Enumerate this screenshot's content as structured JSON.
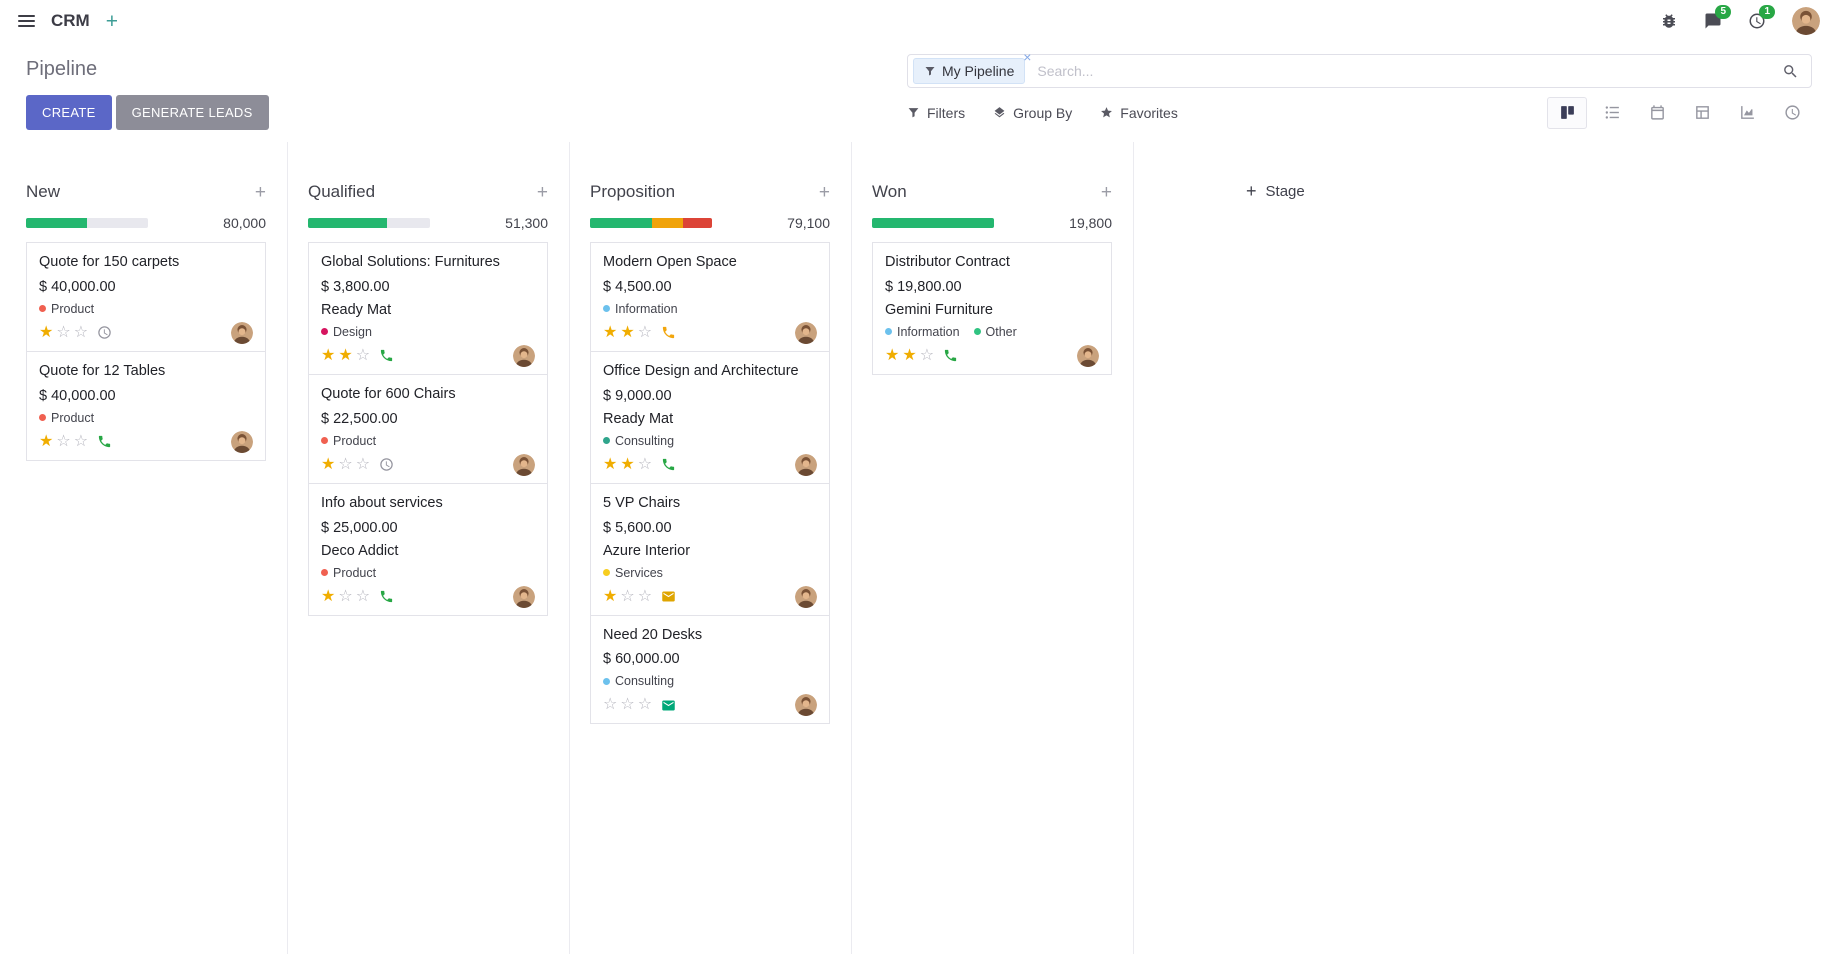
{
  "navbar": {
    "app_name": "CRM",
    "messages_badge": "5",
    "activities_badge": "1"
  },
  "control": {
    "title": "Pipeline",
    "create": "CREATE",
    "generate_leads": "GENERATE LEADS",
    "search_facet": "My Pipeline",
    "search_placeholder": "Search...",
    "add_stage": "Stage",
    "search_tools": [
      {
        "label": "Filters",
        "icon": "funnel"
      },
      {
        "label": "Group By",
        "icon": "layers"
      },
      {
        "label": "Favorites",
        "icon": "star"
      }
    ],
    "view_switcher": [
      {
        "name": "kanban",
        "active": true
      },
      {
        "name": "list",
        "active": false
      },
      {
        "name": "calendar",
        "active": false
      },
      {
        "name": "pivot",
        "active": false
      },
      {
        "name": "graph",
        "active": false
      },
      {
        "name": "activity",
        "active": false
      }
    ]
  },
  "colors": {
    "green": "#24b76f",
    "yellow": "#f0a30a",
    "red": "#dc4437",
    "bar_bg": "#e8e8ee"
  },
  "board": {
    "columns": [
      {
        "name": "New",
        "total": "80,000",
        "bar": [
          {
            "color": "green",
            "pct": 50
          }
        ],
        "cards": [
          {
            "title": "Quote for 150 carpets",
            "amount": "$ 40,000.00",
            "tags": [
              {
                "label": "Product",
                "color": "#f06050"
              }
            ],
            "stars": 1,
            "activity": {
              "icon": "clock",
              "color": "#95959f"
            }
          },
          {
            "title": "Quote for 12 Tables",
            "amount": "$ 40,000.00",
            "tags": [
              {
                "label": "Product",
                "color": "#f06050"
              }
            ],
            "stars": 1,
            "activity": {
              "icon": "phone",
              "color": "#28a745"
            }
          }
        ]
      },
      {
        "name": "Qualified",
        "total": "51,300",
        "bar": [
          {
            "color": "green",
            "pct": 65
          }
        ],
        "cards": [
          {
            "title": "Global Solutions: Furnitures",
            "amount": "$ 3,800.00",
            "partner": "Ready Mat",
            "tags": [
              {
                "label": "Design",
                "color": "#d6145f"
              }
            ],
            "stars": 2,
            "activity": {
              "icon": "phone",
              "color": "#28a745"
            }
          },
          {
            "title": "Quote for 600 Chairs",
            "amount": "$ 22,500.00",
            "tags": [
              {
                "label": "Product",
                "color": "#f06050"
              }
            ],
            "stars": 1,
            "activity": {
              "icon": "clock",
              "color": "#95959f"
            }
          },
          {
            "title": "Info about services",
            "amount": "$ 25,000.00",
            "partner": "Deco Addict",
            "tags": [
              {
                "label": "Product",
                "color": "#f06050"
              }
            ],
            "stars": 1,
            "activity": {
              "icon": "phone",
              "color": "#28a745"
            }
          }
        ]
      },
      {
        "name": "Proposition",
        "total": "79,100",
        "bar": [
          {
            "color": "green",
            "pct": 51
          },
          {
            "color": "yellow",
            "pct": 25
          },
          {
            "color": "red",
            "pct": 24
          }
        ],
        "cards": [
          {
            "title": "Modern Open Space",
            "amount": "$ 4,500.00",
            "tags": [
              {
                "label": "Information",
                "color": "#6cc1ed"
              }
            ],
            "stars": 2,
            "activity": {
              "icon": "phone",
              "color": "#f2a60d"
            }
          },
          {
            "title": "Office Design and Architecture",
            "amount": "$ 9,000.00",
            "partner": "Ready Mat",
            "tags": [
              {
                "label": "Consulting",
                "color": "#2fa58c"
              }
            ],
            "stars": 2,
            "activity": {
              "icon": "phone",
              "color": "#28a745"
            }
          },
          {
            "title": "5 VP Chairs",
            "amount": "$ 5,600.00",
            "partner": "Azure Interior",
            "tags": [
              {
                "label": "Services",
                "color": "#f7cd1f"
              }
            ],
            "stars": 1,
            "activity": {
              "icon": "envelope",
              "color": "#dfa500"
            }
          },
          {
            "title": "Need 20 Desks",
            "amount": "$ 60,000.00",
            "tags": [
              {
                "label": "Consulting",
                "color": "#6cc1ed"
              }
            ],
            "stars": 0,
            "activity": {
              "icon": "envelope",
              "color": "#00a878"
            }
          }
        ]
      },
      {
        "name": "Won",
        "total": "19,800",
        "bar": [
          {
            "color": "green",
            "pct": 100
          }
        ],
        "cards": [
          {
            "title": "Distributor Contract",
            "amount": "$ 19,800.00",
            "partner": "Gemini Furniture",
            "tags": [
              {
                "label": "Information",
                "color": "#6cc1ed"
              },
              {
                "label": "Other",
                "color": "#30c381"
              }
            ],
            "stars": 2,
            "activity": {
              "icon": "phone",
              "color": "#28a745"
            }
          }
        ]
      }
    ]
  }
}
